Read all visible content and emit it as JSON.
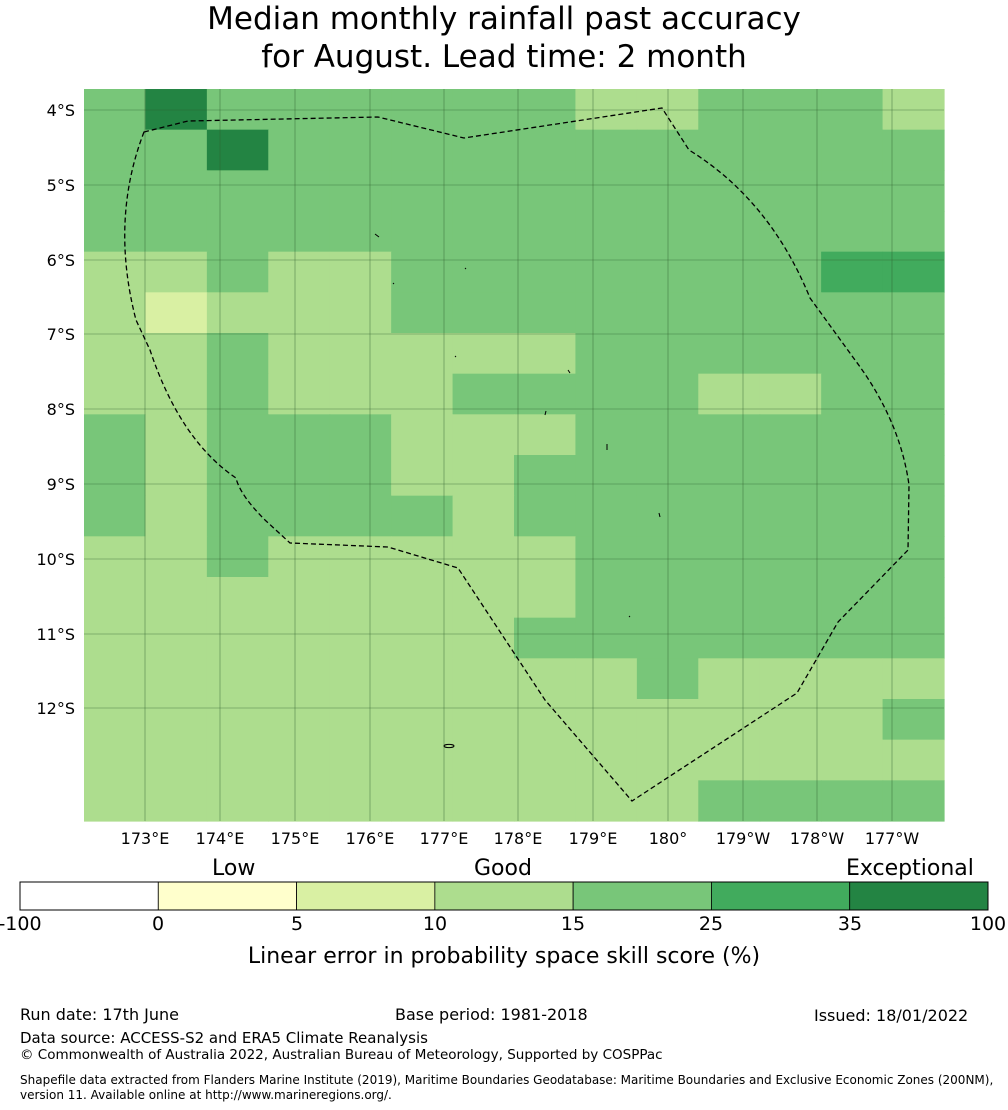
{
  "title": {
    "line1": "Median monthly rainfall past accuracy",
    "line2": "for August. Lead time: 2 month"
  },
  "map": {
    "lat_labels": [
      "4°S",
      "5°S",
      "6°S",
      "7°S",
      "8°S",
      "9°S",
      "10°S",
      "11°S",
      "12°S"
    ],
    "lon_labels": [
      "173°E",
      "174°E",
      "175°E",
      "176°E",
      "177°E",
      "178°E",
      "179°E",
      "180°",
      "179°W",
      "178°W",
      "177°W"
    ],
    "grid_cols": 14,
    "grid_rows": 18,
    "cell_classes": [
      "35333333223332",
      "33533333333333",
      "33333333333333",
      "33333333333333",
      "22322333333344",
      "21222333333333",
      "22322222333333",
      "22322233332233",
      "32333222333333",
      "32333223333333",
      "32333323333333",
      "22322222333333",
      "22222222333333",
      "22222223333333",
      "22222222232222",
      "22222222222223",
      "22222222222222",
      "22222222223333"
    ],
    "colors": {
      "class_1": "#d9f0a3",
      "class_2": "#addd8e",
      "class_3": "#78c679",
      "class_4": "#41ab5d",
      "class_5": "#238443"
    }
  },
  "colorbar": {
    "categories": [
      "Low",
      "Good",
      "Exceptional"
    ],
    "ticks": [
      "-100",
      "0",
      "5",
      "10",
      "15",
      "25",
      "35",
      "100"
    ],
    "bins": [
      {
        "from": -100,
        "to": 0,
        "color": "#ffffff"
      },
      {
        "from": 0,
        "to": 5,
        "color": "#ffffcc"
      },
      {
        "from": 5,
        "to": 10,
        "color": "#d9f0a3"
      },
      {
        "from": 10,
        "to": 15,
        "color": "#addd8e"
      },
      {
        "from": 15,
        "to": 25,
        "color": "#78c679"
      },
      {
        "from": 25,
        "to": 35,
        "color": "#41ab5d"
      },
      {
        "from": 35,
        "to": 100,
        "color": "#238443"
      }
    ],
    "title": "Linear error in probability space skill score (%)"
  },
  "footer": {
    "run_date": "Run date: 17th June",
    "base_period": "Base period: 1981-2018",
    "issued": "Issued: 18/01/2022",
    "data_source": "Data source: ACCESS-S2 and ERA5 Climate Reanalysis",
    "copyright": "© Commonwealth of Australia 2022, Australian Bureau of Meteorology, Supported by COSPPac",
    "shapefile": "Shapefile data extracted from Flanders Marine Institute (2019), Maritime Boundaries Geodatabase: Maritime Boundaries and Exclusive Economic Zones (200NM), version 11. Available online at http://www.marineregions.org/."
  }
}
